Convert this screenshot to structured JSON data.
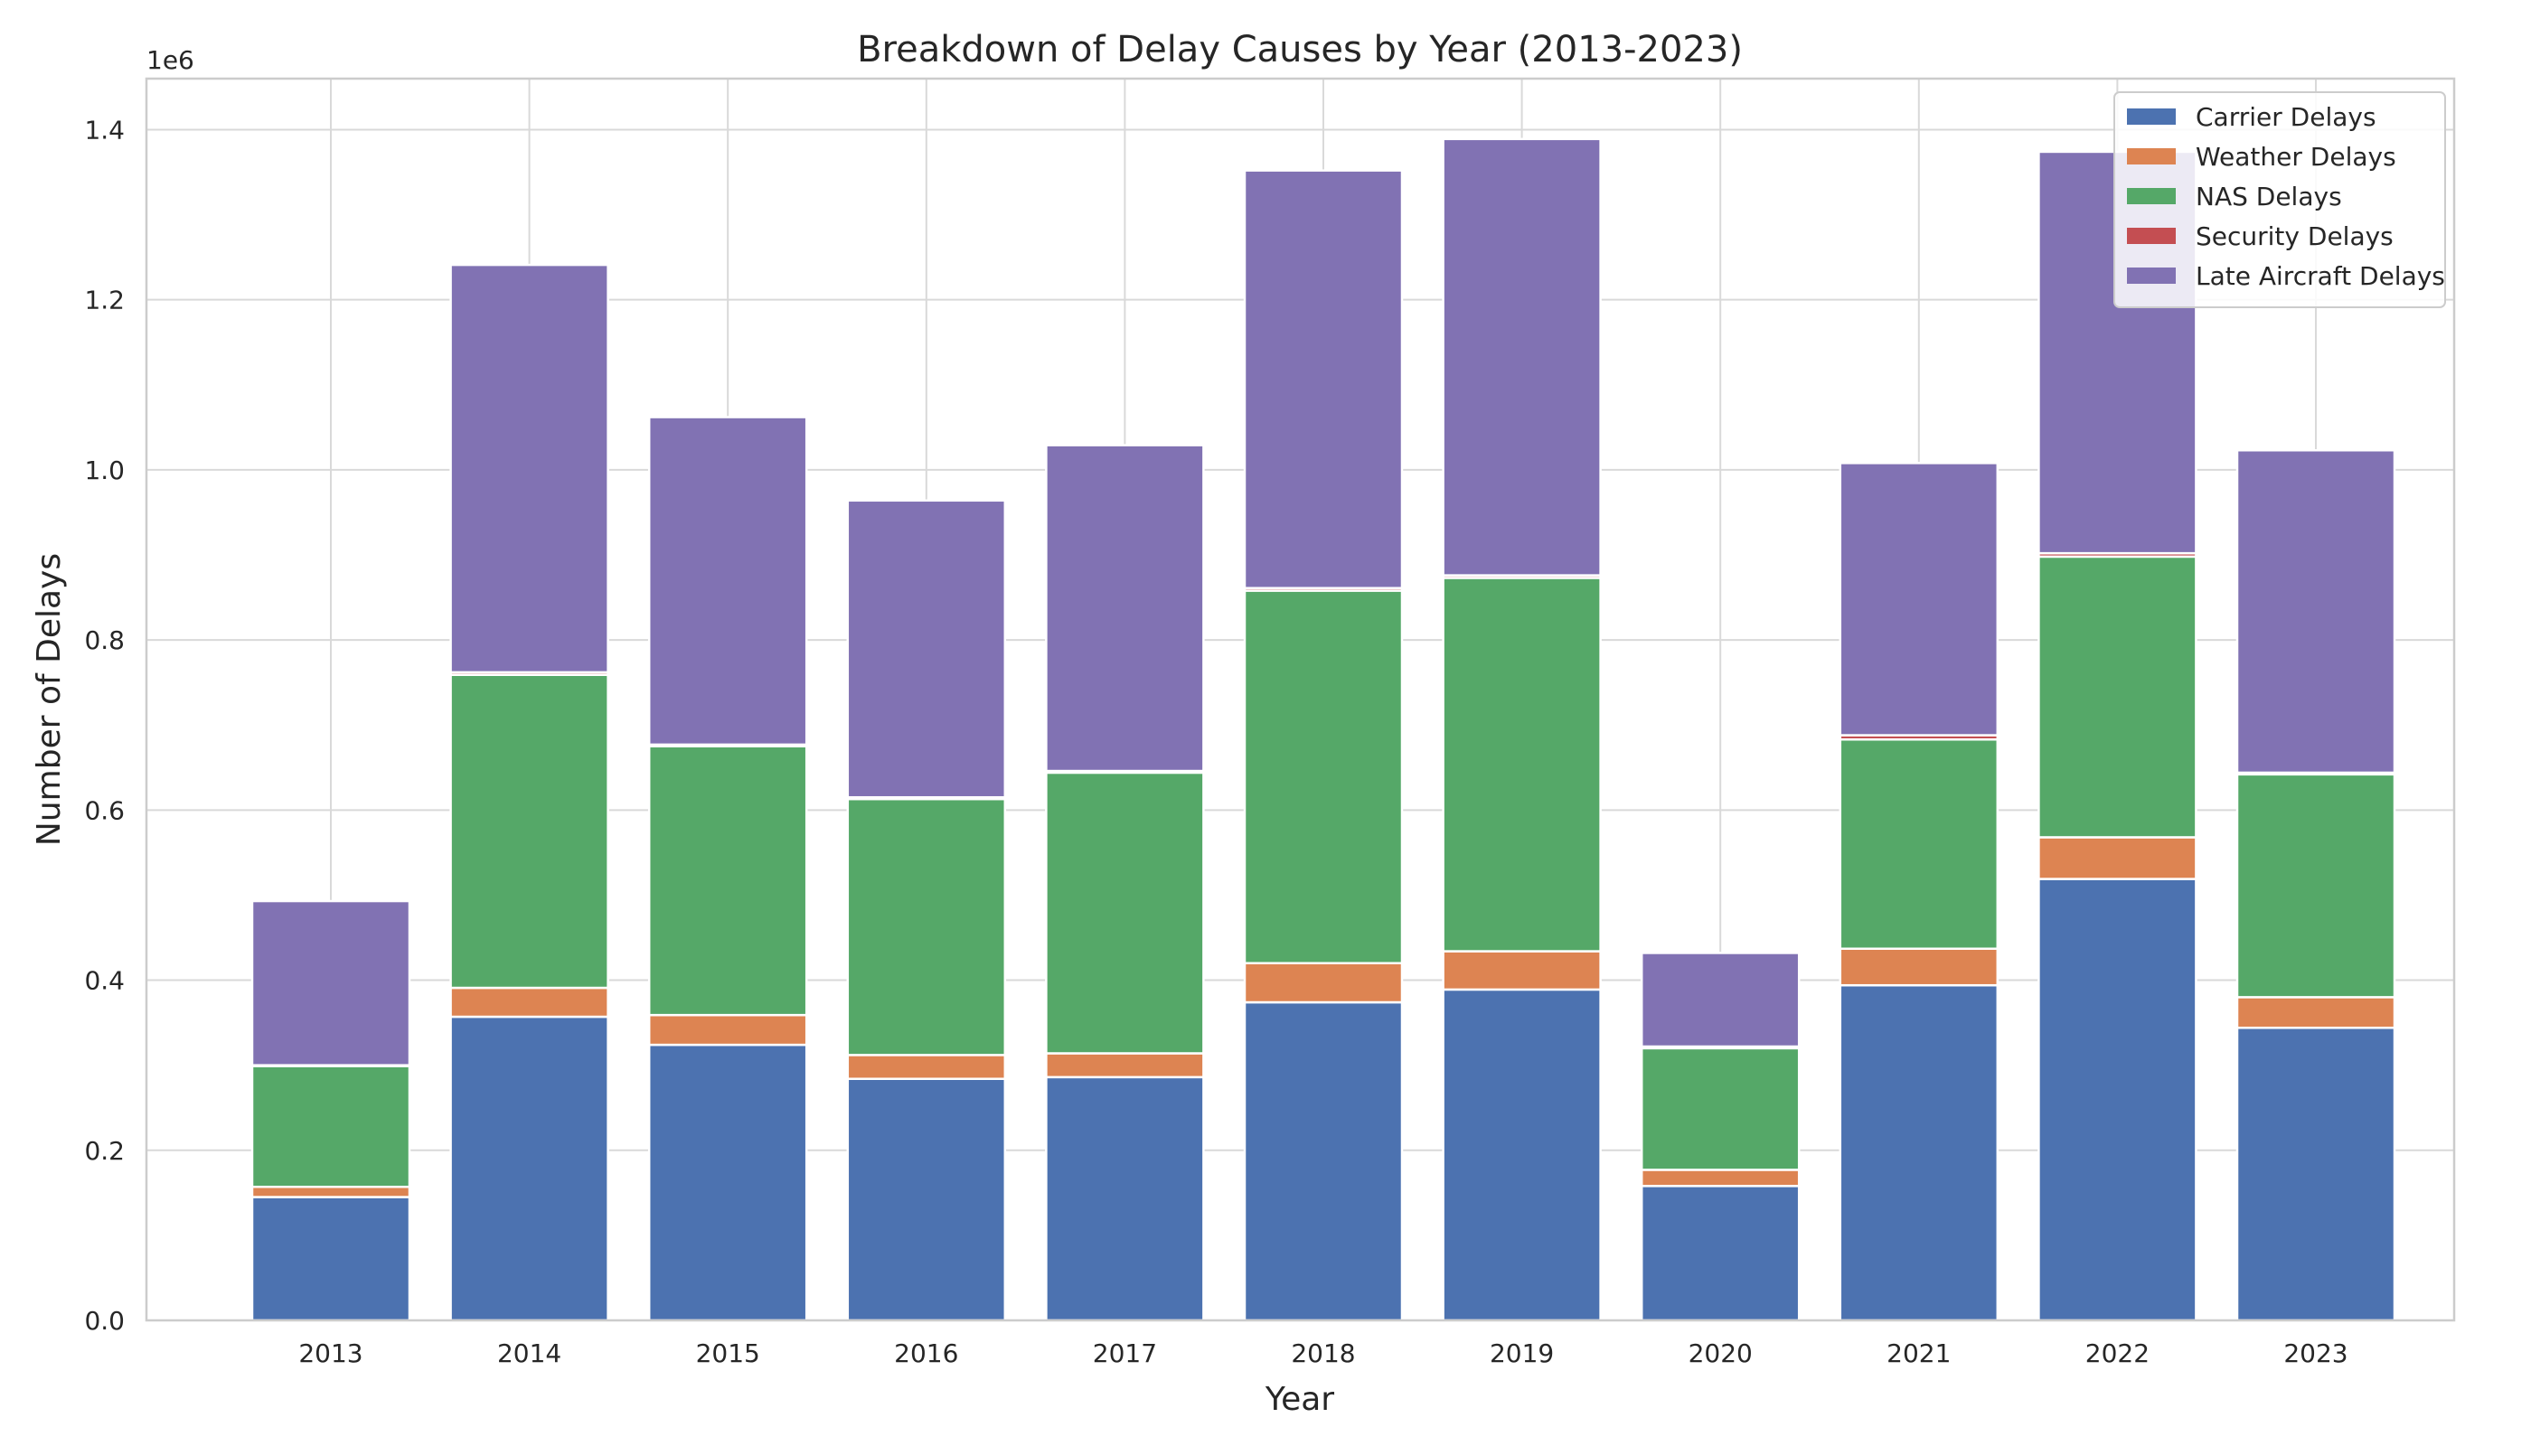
{
  "chart_data": {
    "type": "bar",
    "stacked": true,
    "title": "Breakdown of Delay Causes by Year (2013-2023)",
    "xlabel": "Year",
    "ylabel": "Number of Delays",
    "y_offset_label": "1e6",
    "ylim": [
      0,
      1460000
    ],
    "y_ticks": [
      0,
      200000,
      400000,
      600000,
      800000,
      1000000,
      1200000,
      1400000
    ],
    "y_tick_labels": [
      "0.0",
      "0.2",
      "0.4",
      "0.6",
      "0.8",
      "1.0",
      "1.2",
      "1.4"
    ],
    "grid": true,
    "legend_position": "top-right",
    "categories": [
      "2013",
      "2014",
      "2015",
      "2016",
      "2017",
      "2018",
      "2019",
      "2020",
      "2021",
      "2022",
      "2023"
    ],
    "series": [
      {
        "name": "Carrier Delays",
        "color": "#4c72b0",
        "values": [
          145000,
          357000,
          324000,
          284000,
          286000,
          374000,
          389000,
          158000,
          394000,
          519000,
          344000
        ]
      },
      {
        "name": "Weather Delays",
        "color": "#dd8452",
        "values": [
          12000,
          34000,
          35000,
          28000,
          28000,
          46000,
          45000,
          19000,
          43000,
          49000,
          36000
        ]
      },
      {
        "name": "NAS Delays",
        "color": "#55a868",
        "values": [
          142000,
          368000,
          316000,
          301000,
          330000,
          438000,
          439000,
          143000,
          246000,
          330000,
          262000
        ]
      },
      {
        "name": "Security Delays",
        "color": "#c44e52",
        "values": [
          1000,
          3000,
          2000,
          2000,
          2000,
          3000,
          3000,
          2000,
          5000,
          4000,
          2000
        ]
      },
      {
        "name": "Late Aircraft Delays",
        "color": "#8172b3",
        "values": [
          193000,
          479000,
          385000,
          349000,
          383000,
          491000,
          513000,
          110000,
          320000,
          472000,
          379000
        ]
      }
    ]
  }
}
